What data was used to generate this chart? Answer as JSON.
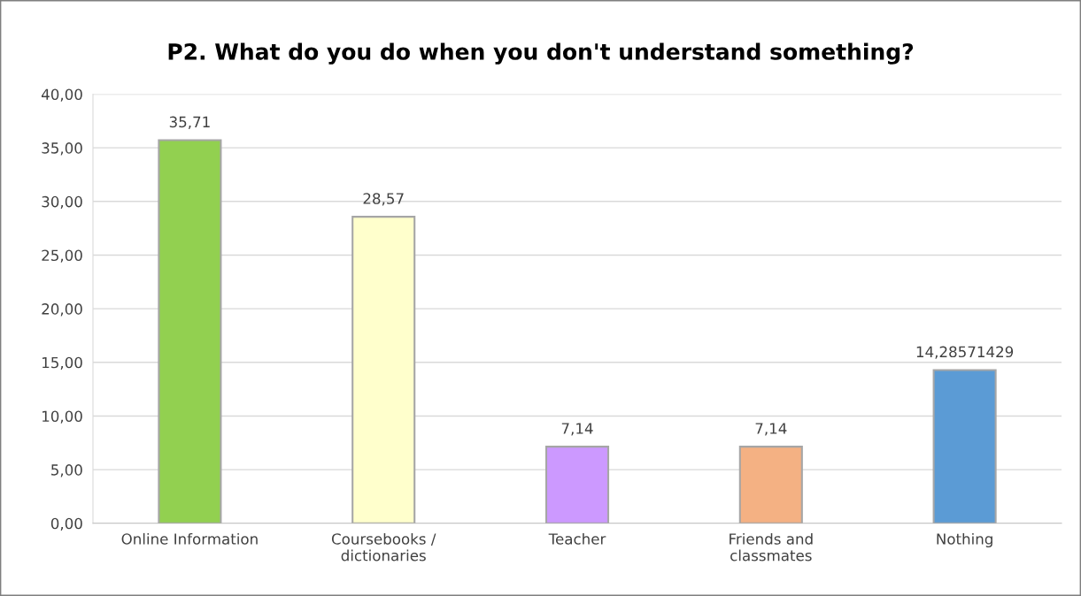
{
  "chart_data": {
    "type": "bar",
    "title": "P2. What do you do when you don't understand something?",
    "categories": [
      "Online Information",
      "Coursebooks /\ndictionaries",
      "Teacher",
      "Friends and\nclassmates",
      "Nothing"
    ],
    "values": [
      35.71,
      28.57,
      7.14,
      7.14,
      14.28571429
    ],
    "colors": [
      "#92d050",
      "#ffffcc",
      "#cc99ff",
      "#f4b183",
      "#5b9bd5"
    ],
    "value_labels": [
      "35,71",
      "28,57",
      "7,14",
      "7,14",
      "14,28571429"
    ],
    "ylim": [
      0,
      40
    ],
    "yticks": [
      {
        "value": 0,
        "label": "0,00"
      },
      {
        "value": 5,
        "label": "5,00"
      },
      {
        "value": 10,
        "label": "10,00"
      },
      {
        "value": 15,
        "label": "15,00"
      },
      {
        "value": 20,
        "label": "20,00"
      },
      {
        "value": 25,
        "label": "25,00"
      },
      {
        "value": 30,
        "label": "30,00"
      },
      {
        "value": 35,
        "label": "35,00"
      },
      {
        "value": 40,
        "label": "40,00"
      }
    ],
    "grid": "y",
    "legend": false
  }
}
